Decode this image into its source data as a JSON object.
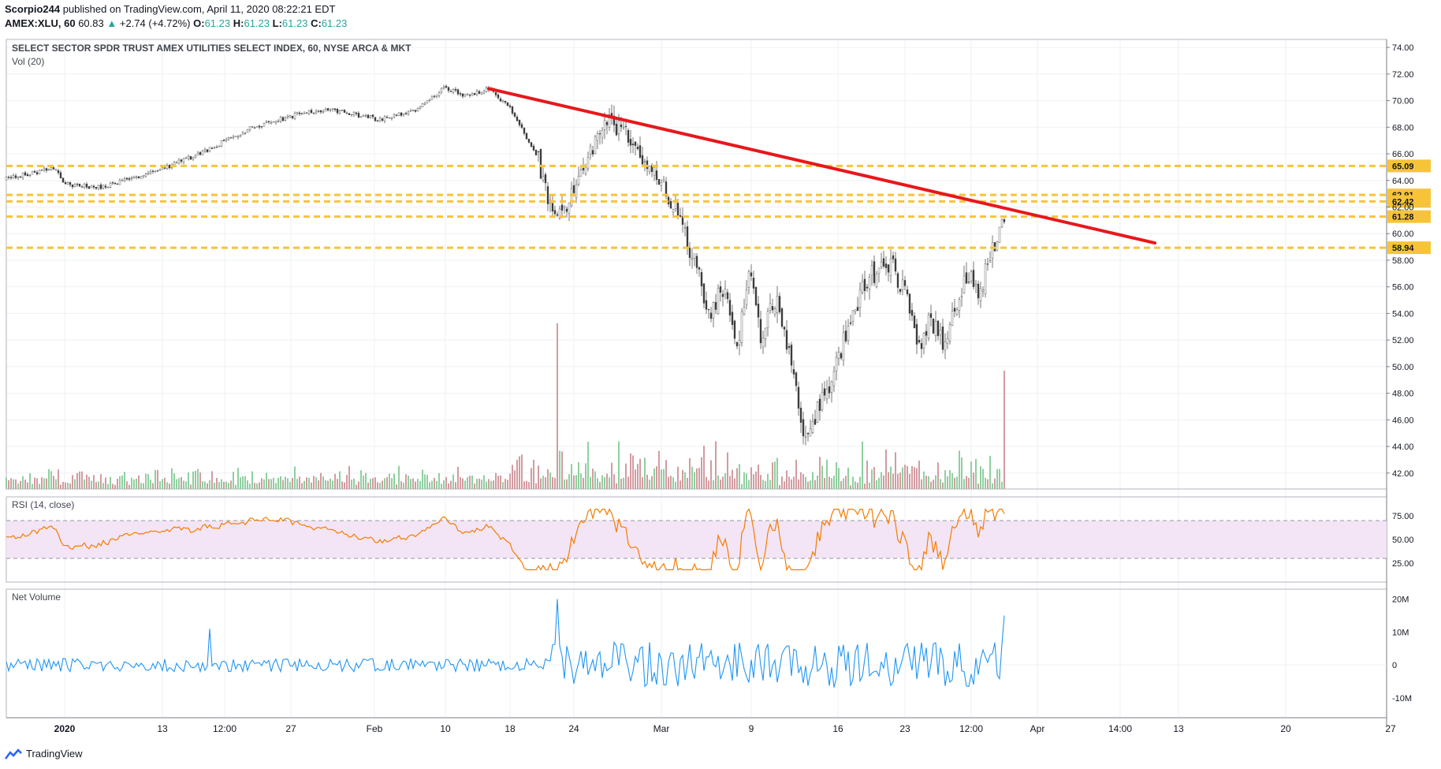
{
  "header": {
    "author": "Scorpio244",
    "published_text": "published on TradingView.com, April 11, 2020 08:22:21 EDT",
    "symbol": "AMEX:XLU, 60",
    "last": "60.83",
    "change_arrow": "▲",
    "change": "+2.74 (+4.72%)",
    "o_label": "O:",
    "o_value": "61.23",
    "h_label": "H:",
    "h_value": "61.23",
    "l_label": "L:",
    "l_value": "61.23",
    "c_label": "C:",
    "c_value": "61.23"
  },
  "footer": {
    "brand": "TradingView"
  },
  "colors": {
    "up": "#26a69a",
    "down": "#ef5350",
    "trendline": "#e8171b",
    "level": "#f7c439",
    "rsi": "#f57c00",
    "rsi_band": "#e1bee7",
    "netvol": "#2196f3",
    "vol_up": "#8fcf9f",
    "vol_down": "#d39ba0"
  },
  "chart_data": [
    {
      "type": "candlestick",
      "title": "SELECT SECTOR SPDR TRUST AMEX UTILITIES SELECT INDEX, 60, NYSE ARCA & MKT",
      "volume_label": "Vol (20)",
      "ylim": [
        40.8,
        74.6
      ],
      "y_ticks": [
        "74.00",
        "72.00",
        "70.00",
        "68.00",
        "66.00",
        "64.00",
        "62.00",
        "60.00",
        "58.00",
        "56.00",
        "54.00",
        "52.00",
        "50.00",
        "48.00",
        "46.00",
        "44.00",
        "42.00"
      ],
      "x_ticks": [
        "2020",
        "13",
        "12:00",
        "27",
        "Feb",
        "10",
        "18",
        "24",
        "Mar",
        "9",
        "16",
        "23",
        "12:00",
        "Apr",
        "14:00",
        "13",
        "20",
        "27"
      ],
      "price_path": [
        [
          0,
          64.0
        ],
        [
          30,
          64.4
        ],
        [
          70,
          65.0
        ],
        [
          80,
          63.7
        ],
        [
          130,
          63.5
        ],
        [
          200,
          64.7
        ],
        [
          260,
          66.2
        ],
        [
          320,
          68.0
        ],
        [
          380,
          69.0
        ],
        [
          420,
          69.3
        ],
        [
          480,
          68.6
        ],
        [
          530,
          69.3
        ],
        [
          565,
          71.0
        ],
        [
          590,
          70.4
        ],
        [
          620,
          70.9
        ],
        [
          650,
          69.2
        ],
        [
          680,
          66.0
        ],
        [
          705,
          61.0
        ],
        [
          720,
          62.5
        ],
        [
          745,
          66.0
        ],
        [
          770,
          68.6
        ],
        [
          790,
          67.8
        ],
        [
          805,
          66.0
        ],
        [
          820,
          65.2
        ],
        [
          840,
          63.5
        ],
        [
          860,
          61.6
        ],
        [
          880,
          58.0
        ],
        [
          900,
          54.2
        ],
        [
          920,
          56.0
        ],
        [
          935,
          51.2
        ],
        [
          950,
          57.5
        ],
        [
          965,
          52.5
        ],
        [
          985,
          55.0
        ],
        [
          1005,
          50.0
        ],
        [
          1020,
          44.8
        ],
        [
          1040,
          47.0
        ],
        [
          1060,
          50.0
        ],
        [
          1080,
          54.0
        ],
        [
          1100,
          56.5
        ],
        [
          1130,
          58.0
        ],
        [
          1150,
          55.0
        ],
        [
          1165,
          51.5
        ],
        [
          1180,
          53.5
        ],
        [
          1200,
          51.6
        ],
        [
          1215,
          55.0
        ],
        [
          1230,
          57.2
        ],
        [
          1245,
          55.5
        ],
        [
          1255,
          58.5
        ],
        [
          1263,
          58.6
        ],
        [
          1270,
          61.2
        ],
        [
          1275,
          60.8
        ]
      ],
      "horizontal_levels": [
        65.09,
        62.91,
        62.42,
        61.28,
        58.94
      ],
      "level_labels": [
        "65.09",
        "62.91",
        "62.42",
        "61.28",
        "58.94"
      ],
      "trendline": [
        [
          620,
          70.9
        ],
        [
          1465,
          59.3
        ]
      ]
    },
    {
      "type": "line",
      "title": "RSI (14, close)",
      "ylim": [
        5,
        95
      ],
      "y_ticks": [
        "75.00",
        "50.00",
        "25.00"
      ],
      "bands": [
        70,
        30
      ]
    },
    {
      "type": "line",
      "title": "Net Volume",
      "ylim": [
        -16,
        23
      ],
      "y_ticks": [
        "20M",
        "10M",
        "0",
        "-10M"
      ]
    }
  ]
}
